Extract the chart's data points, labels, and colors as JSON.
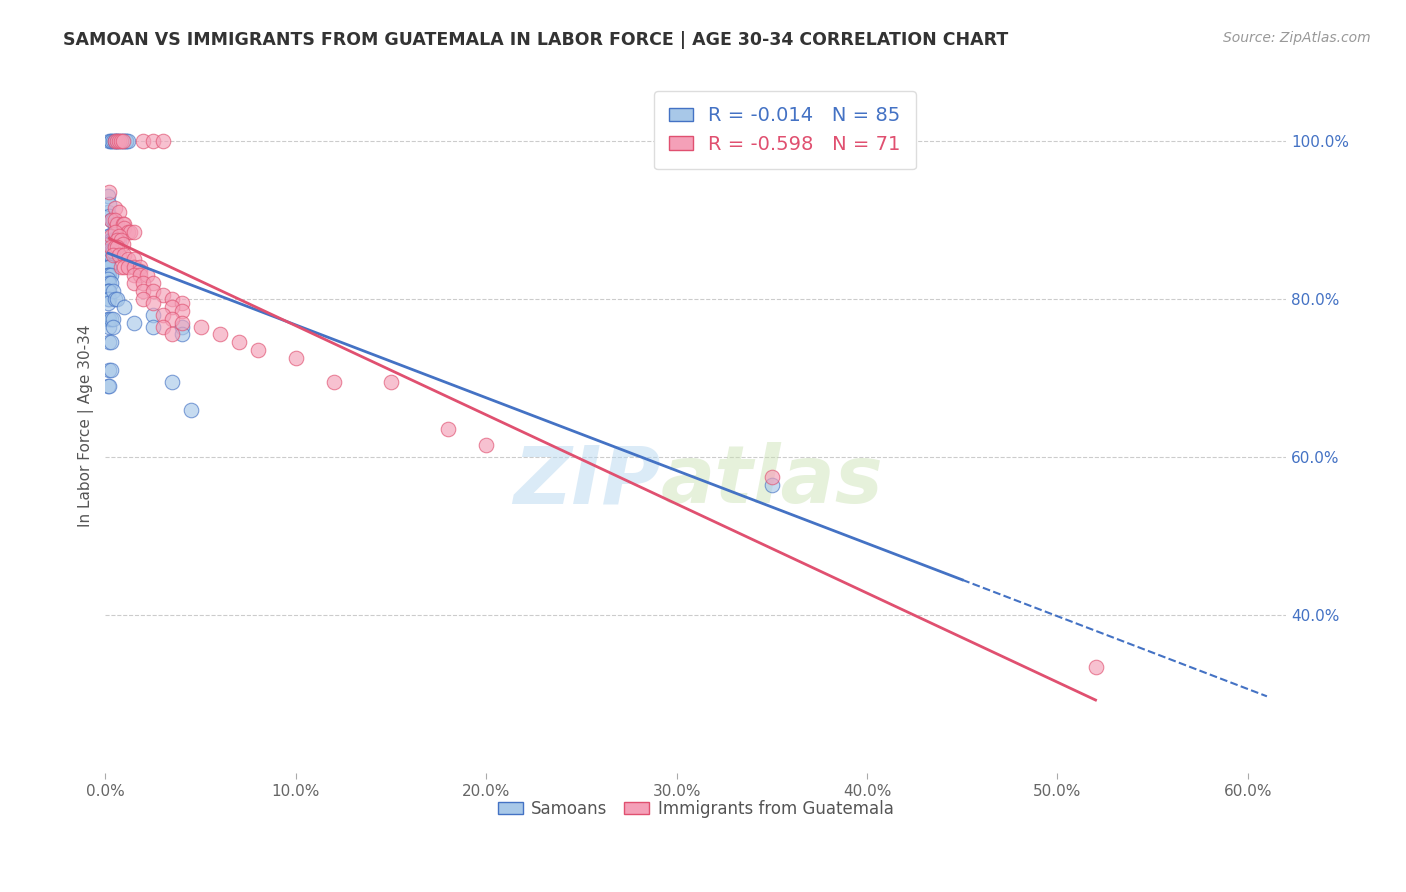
{
  "title": "SAMOAN VS IMMIGRANTS FROM GUATEMALA IN LABOR FORCE | AGE 30-34 CORRELATION CHART",
  "source": "Source: ZipAtlas.com",
  "ylabel": "In Labor Force | Age 30-34",
  "y_axis_color": "#4472c4",
  "blue_color": "#a8c8e8",
  "pink_color": "#f4a0b8",
  "blue_line_color": "#4472c4",
  "pink_line_color": "#e05070",
  "watermark_zip": "ZIP",
  "watermark_atlas": "atlas",
  "blue_scatter": [
    [
      0.2,
      100.0
    ],
    [
      0.3,
      100.0
    ],
    [
      0.3,
      100.0
    ],
    [
      0.4,
      100.0
    ],
    [
      0.5,
      100.0
    ],
    [
      0.5,
      100.0
    ],
    [
      0.6,
      100.0
    ],
    [
      0.6,
      100.0
    ],
    [
      0.7,
      100.0
    ],
    [
      0.8,
      100.0
    ],
    [
      0.9,
      100.0
    ],
    [
      1.0,
      100.0
    ],
    [
      1.1,
      100.0
    ],
    [
      1.1,
      100.0
    ],
    [
      1.2,
      100.0
    ],
    [
      0.15,
      93.0
    ],
    [
      0.15,
      91.0
    ],
    [
      0.2,
      92.0
    ],
    [
      0.2,
      90.5
    ],
    [
      0.3,
      90.0
    ],
    [
      0.4,
      90.0
    ],
    [
      0.5,
      89.5
    ],
    [
      0.5,
      89.0
    ],
    [
      0.15,
      88.0
    ],
    [
      0.2,
      88.0
    ],
    [
      0.3,
      87.5
    ],
    [
      0.3,
      87.5
    ],
    [
      0.4,
      87.5
    ],
    [
      0.5,
      87.5
    ],
    [
      0.6,
      87.5
    ],
    [
      0.7,
      87.5
    ],
    [
      0.15,
      87.0
    ],
    [
      0.15,
      86.5
    ],
    [
      0.2,
      87.0
    ],
    [
      0.2,
      87.0
    ],
    [
      0.15,
      86.0
    ],
    [
      0.15,
      85.5
    ],
    [
      0.15,
      85.0
    ],
    [
      0.2,
      85.5
    ],
    [
      0.2,
      85.0
    ],
    [
      0.3,
      85.5
    ],
    [
      0.3,
      86.0
    ],
    [
      0.4,
      86.0
    ],
    [
      0.15,
      84.0
    ],
    [
      0.15,
      84.0
    ],
    [
      0.2,
      84.0
    ],
    [
      0.2,
      84.0
    ],
    [
      0.15,
      83.0
    ],
    [
      0.15,
      83.0
    ],
    [
      0.2,
      83.0
    ],
    [
      0.3,
      83.0
    ],
    [
      0.15,
      82.0
    ],
    [
      0.15,
      82.5
    ],
    [
      0.2,
      82.0
    ],
    [
      0.3,
      82.0
    ],
    [
      0.15,
      81.0
    ],
    [
      0.15,
      81.0
    ],
    [
      0.2,
      81.0
    ],
    [
      0.15,
      80.0
    ],
    [
      0.2,
      80.0
    ],
    [
      0.15,
      79.5
    ],
    [
      0.4,
      81.0
    ],
    [
      0.5,
      80.0
    ],
    [
      0.6,
      80.0
    ],
    [
      0.15,
      77.5
    ],
    [
      0.2,
      77.5
    ],
    [
      0.2,
      76.5
    ],
    [
      0.3,
      77.5
    ],
    [
      0.4,
      77.5
    ],
    [
      0.4,
      76.5
    ],
    [
      0.2,
      74.5
    ],
    [
      0.3,
      74.5
    ],
    [
      0.2,
      71.0
    ],
    [
      0.3,
      71.0
    ],
    [
      0.15,
      69.0
    ],
    [
      0.2,
      69.0
    ],
    [
      1.0,
      79.0
    ],
    [
      1.5,
      77.0
    ],
    [
      2.5,
      78.0
    ],
    [
      2.5,
      76.5
    ],
    [
      4.0,
      76.5
    ],
    [
      4.0,
      75.5
    ],
    [
      3.5,
      69.5
    ],
    [
      4.5,
      66.0
    ],
    [
      35.0,
      56.5
    ]
  ],
  "pink_scatter": [
    [
      0.5,
      100.0
    ],
    [
      0.6,
      100.0
    ],
    [
      0.7,
      100.0
    ],
    [
      0.8,
      100.0
    ],
    [
      0.9,
      100.0
    ],
    [
      2.0,
      100.0
    ],
    [
      2.5,
      100.0
    ],
    [
      3.0,
      100.0
    ],
    [
      0.2,
      93.5
    ],
    [
      0.5,
      91.5
    ],
    [
      0.7,
      91.0
    ],
    [
      0.3,
      90.0
    ],
    [
      0.5,
      90.0
    ],
    [
      0.6,
      89.5
    ],
    [
      0.9,
      89.5
    ],
    [
      1.0,
      89.5
    ],
    [
      1.0,
      89.0
    ],
    [
      1.2,
      88.5
    ],
    [
      1.3,
      88.5
    ],
    [
      1.5,
      88.5
    ],
    [
      0.3,
      88.0
    ],
    [
      0.5,
      88.5
    ],
    [
      0.7,
      88.0
    ],
    [
      0.6,
      87.5
    ],
    [
      0.8,
      87.5
    ],
    [
      0.9,
      87.0
    ],
    [
      0.3,
      86.5
    ],
    [
      0.5,
      86.5
    ],
    [
      0.6,
      86.5
    ],
    [
      0.4,
      85.5
    ],
    [
      0.7,
      85.5
    ],
    [
      1.0,
      85.5
    ],
    [
      1.2,
      85.0
    ],
    [
      1.5,
      85.0
    ],
    [
      0.8,
      84.0
    ],
    [
      1.0,
      84.0
    ],
    [
      1.2,
      84.0
    ],
    [
      1.5,
      84.0
    ],
    [
      1.8,
      84.0
    ],
    [
      1.8,
      83.5
    ],
    [
      1.5,
      83.0
    ],
    [
      1.8,
      83.0
    ],
    [
      2.2,
      83.0
    ],
    [
      1.5,
      82.0
    ],
    [
      2.0,
      82.0
    ],
    [
      2.5,
      82.0
    ],
    [
      2.0,
      81.0
    ],
    [
      2.5,
      81.0
    ],
    [
      3.0,
      80.5
    ],
    [
      2.0,
      80.0
    ],
    [
      2.5,
      79.5
    ],
    [
      3.5,
      80.0
    ],
    [
      4.0,
      79.5
    ],
    [
      3.5,
      79.0
    ],
    [
      4.0,
      78.5
    ],
    [
      3.0,
      78.0
    ],
    [
      3.5,
      77.5
    ],
    [
      3.0,
      76.5
    ],
    [
      3.5,
      75.5
    ],
    [
      4.0,
      77.0
    ],
    [
      5.0,
      76.5
    ],
    [
      6.0,
      75.5
    ],
    [
      7.0,
      74.5
    ],
    [
      8.0,
      73.5
    ],
    [
      10.0,
      72.5
    ],
    [
      12.0,
      69.5
    ],
    [
      15.0,
      69.5
    ],
    [
      18.0,
      63.5
    ],
    [
      20.0,
      61.5
    ],
    [
      35.0,
      57.5
    ],
    [
      52.0,
      33.5
    ]
  ],
  "xlim": [
    0,
    62
  ],
  "ylim": [
    20,
    108
  ],
  "right_ytick_positions": [
    100,
    80,
    60,
    40
  ],
  "right_ytick_labels": [
    "100.0%",
    "80.0%",
    "60.0%",
    "40.0%"
  ],
  "xticks": [
    0,
    10,
    20,
    30,
    40,
    50,
    60
  ],
  "xtick_labels": [
    "0.0%",
    "10.0%",
    "20.0%",
    "30.0%",
    "40.0%",
    "50.0%",
    "60.0%"
  ]
}
